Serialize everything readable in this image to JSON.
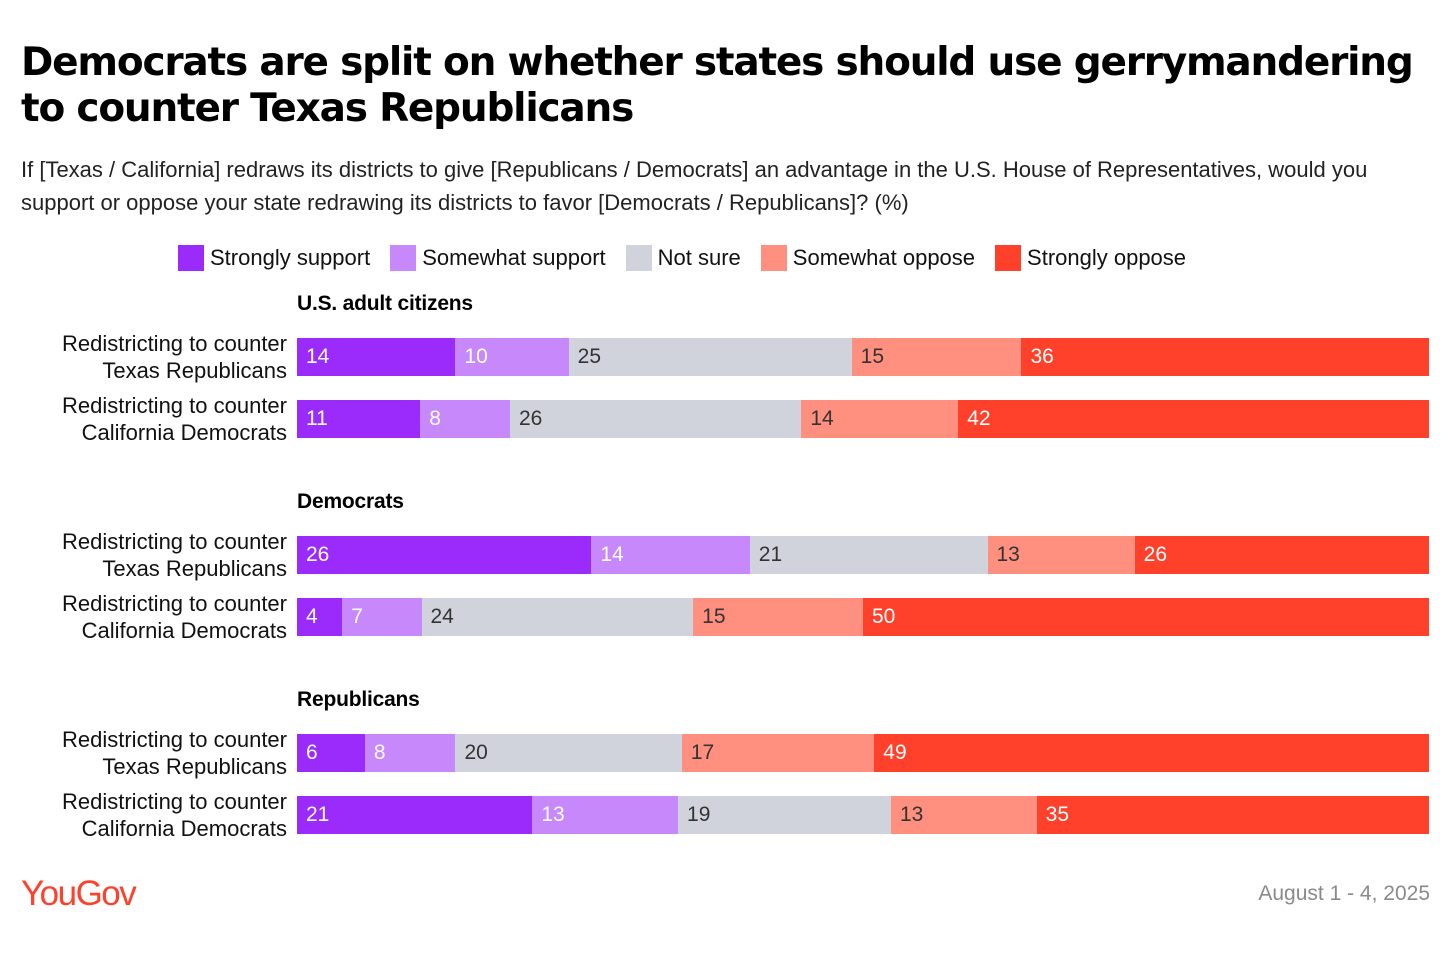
{
  "title": "Democrats are split on whether states should use gerrymandering to counter Texas Republicans",
  "subtitle": "If [Texas / California] redraws its districts to give [Republicans / Democrats] an advantage in the U.S. House of Representatives, would you support or oppose your state redrawing its districts to favor [Democrats / Republicans]? (%)",
  "brand": "YouGov",
  "date": "August 1 - 4, 2025",
  "colors": {
    "strongly_support": "#9b2bfa",
    "somewhat_support": "#c688fb",
    "not_sure": "#d0d3dc",
    "somewhat_oppose": "#ff8f7f",
    "strongly_oppose": "#ff412c",
    "brand": "#ff412c"
  },
  "chart_data": {
    "type": "bar",
    "orientation": "horizontal",
    "stacked": true,
    "xlim": [
      0,
      100
    ],
    "legend": [
      "Strongly support",
      "Somewhat support",
      "Not sure",
      "Somewhat oppose",
      "Strongly oppose"
    ],
    "legend_placement": "top",
    "groups": [
      {
        "name": "U.S. adult citizens",
        "rows": [
          {
            "label_lines": [
              "Redistricting to counter",
              "Texas Republicans"
            ],
            "values": [
              14,
              10,
              25,
              15,
              36
            ]
          },
          {
            "label_lines": [
              "Redistricting to counter",
              "California Democrats"
            ],
            "values": [
              11,
              8,
              26,
              14,
              42
            ]
          }
        ]
      },
      {
        "name": "Democrats",
        "rows": [
          {
            "label_lines": [
              "Redistricting to counter",
              "Texas Republicans"
            ],
            "values": [
              26,
              14,
              21,
              13,
              26
            ]
          },
          {
            "label_lines": [
              "Redistricting to counter",
              "California Democrats"
            ],
            "values": [
              4,
              7,
              24,
              15,
              50
            ]
          }
        ]
      },
      {
        "name": "Republicans",
        "rows": [
          {
            "label_lines": [
              "Redistricting to counter",
              "Texas Republicans"
            ],
            "values": [
              6,
              8,
              20,
              17,
              49
            ]
          },
          {
            "label_lines": [
              "Redistricting to counter",
              "California Democrats"
            ],
            "values": [
              21,
              13,
              19,
              13,
              35
            ]
          }
        ]
      }
    ]
  }
}
